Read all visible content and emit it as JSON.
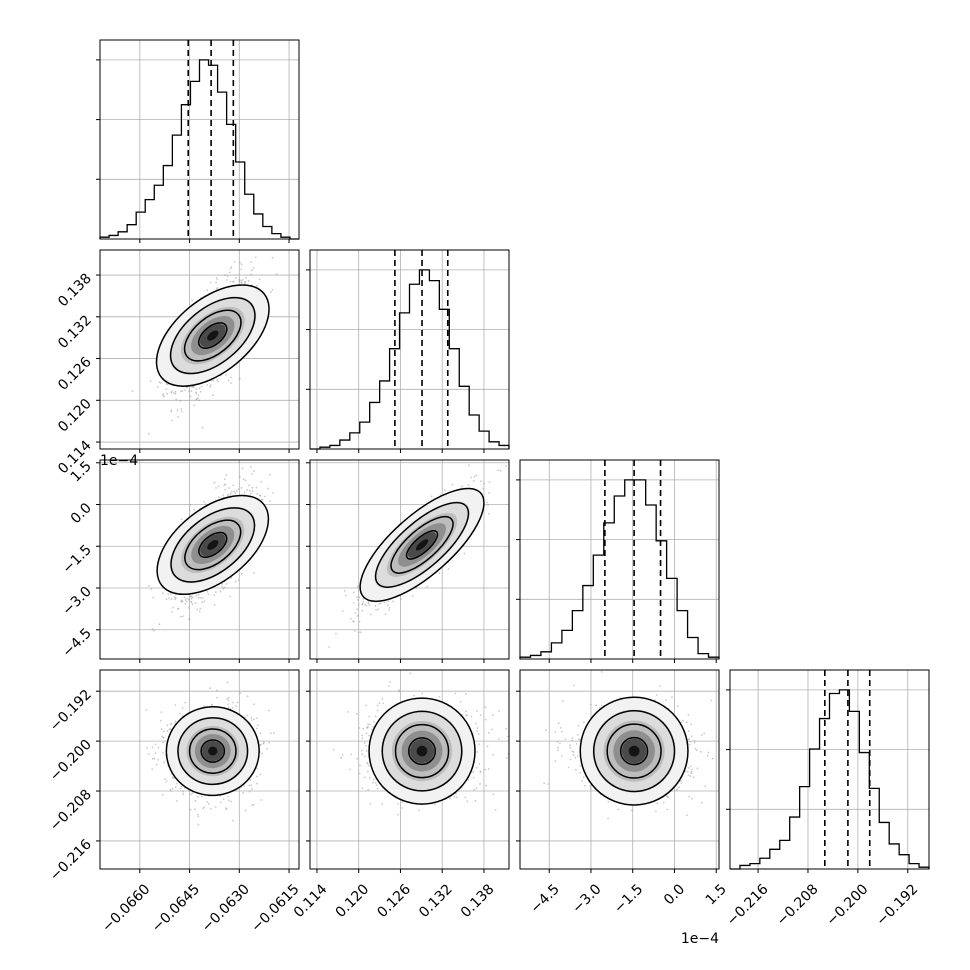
{
  "chart_data": {
    "type": "corner",
    "grid": true,
    "parameters": [
      {
        "range": [
          -0.0672,
          -0.0612
        ],
        "ticks": [
          -0.066,
          -0.0645,
          -0.063,
          -0.0615
        ],
        "tick_labels": [
          "−0.0660",
          "−0.0645",
          "−0.0630",
          "−0.0615"
        ],
        "offset": "",
        "hist": [
          1,
          2,
          4,
          8,
          15,
          22,
          30,
          41,
          58,
          75,
          88,
          100,
          97,
          82,
          64,
          43,
          25,
          14,
          7,
          3,
          1,
          0
        ],
        "quantiles": [
          -0.06454,
          -0.06385,
          -0.06318
        ]
      },
      {
        "range": [
          0.113,
          0.1416
        ],
        "ticks": [
          0.114,
          0.12,
          0.126,
          0.132,
          0.138
        ],
        "tick_labels": [
          "0.114",
          "0.120",
          "0.126",
          "0.132",
          "0.138"
        ],
        "offset": "",
        "hist": [
          0,
          1,
          2,
          5,
          9,
          15,
          26,
          38,
          56,
          76,
          92,
          100,
          94,
          78,
          56,
          35,
          19,
          10,
          4,
          2
        ],
        "quantiles": [
          0.1252,
          0.1291,
          0.1328
        ]
      },
      {
        "range": [
          -5.55,
          1.6
        ],
        "ticks": [
          -4.5,
          -3.0,
          -1.5,
          0.0,
          1.5
        ],
        "tick_labels": [
          "−4.5",
          "−3.0",
          "−1.5",
          "0.0",
          "1.5"
        ],
        "offset": "1e−4",
        "hist": [
          1,
          2,
          4,
          9,
          16,
          27,
          41,
          58,
          76,
          91,
          100,
          100,
          86,
          66,
          45,
          27,
          12,
          3,
          1
        ],
        "quantiles": [
          -2.5,
          -1.45,
          -0.5
        ]
      },
      {
        "range": [
          -0.2205,
          -0.1886
        ],
        "ticks": [
          -0.216,
          -0.208,
          -0.2,
          -0.192
        ],
        "tick_labels": [
          "−0.216",
          "−0.208",
          "−0.200",
          "−0.192"
        ],
        "offset": "",
        "hist": [
          0,
          2,
          3,
          6,
          11,
          16,
          29,
          46,
          67,
          84,
          98,
          100,
          88,
          65,
          45,
          26,
          14,
          8,
          3,
          1
        ],
        "quantiles": [
          -0.2053,
          -0.2016,
          -0.1981
        ]
      }
    ],
    "pairs": [
      {
        "row": 1,
        "col": 0,
        "mean": [
          -0.0638,
          0.1293
        ],
        "sd": [
          0.0006,
          0.0039
        ],
        "rho": 0.6
      },
      {
        "row": 2,
        "col": 0,
        "mean": [
          -0.0638,
          -1.45
        ],
        "sd": [
          0.0006,
          0.95
        ],
        "rho": 0.6
      },
      {
        "row": 2,
        "col": 1,
        "mean": [
          0.1291,
          -1.45
        ],
        "sd": [
          0.0037,
          0.95
        ],
        "rho": 0.86
      },
      {
        "row": 3,
        "col": 0,
        "mean": [
          -0.0638,
          -0.2016
        ],
        "sd": [
          0.00062,
          0.0033
        ],
        "rho": 0.05
      },
      {
        "row": 3,
        "col": 1,
        "mean": [
          0.1291,
          -0.2016
        ],
        "sd": [
          0.0039,
          0.0033
        ],
        "rho": 0.0
      },
      {
        "row": 3,
        "col": 2,
        "mean": [
          -1.45,
          -0.2016
        ],
        "sd": [
          1.0,
          0.0033
        ],
        "rho": 0.0
      }
    ],
    "contour_levels_sigma": [
      0.5,
      1.0,
      1.5,
      2.0
    ],
    "colors": {
      "line": "#000000",
      "points": "#9e9e9e",
      "grid": "#b0b0b0"
    }
  }
}
